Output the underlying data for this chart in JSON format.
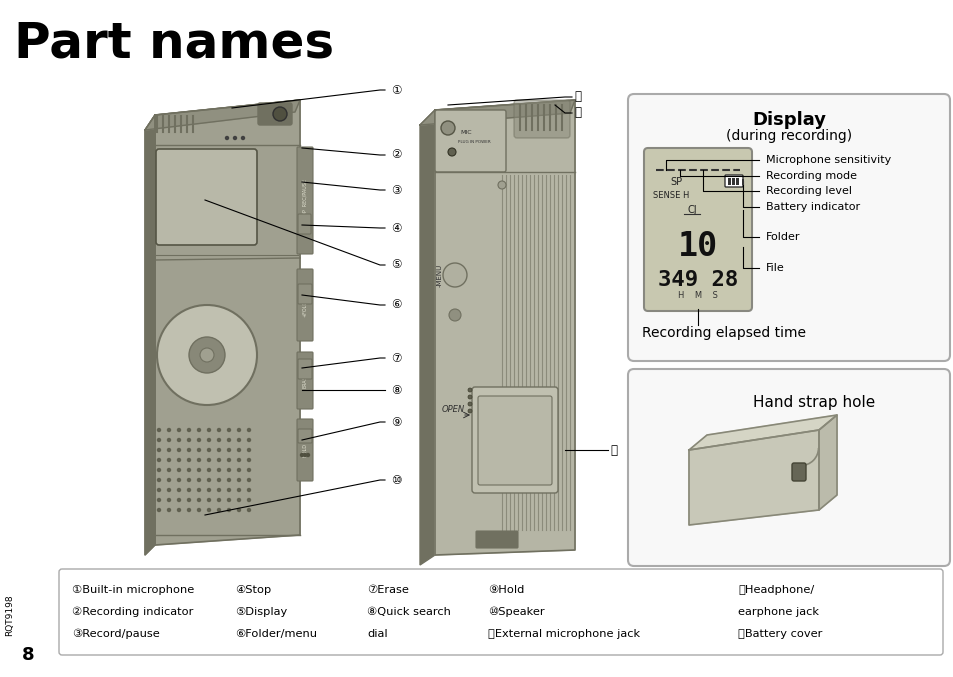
{
  "title": "Part names",
  "bg_color": "#ffffff",
  "title_fontsize": 36,
  "display_title": "Display",
  "display_subtitle": "(during recording)",
  "display_labels": [
    "Microphone sensitivity",
    "Recording mode",
    "Recording level",
    "Battery indicator",
    "Folder",
    "File"
  ],
  "display_bottom_label": "Recording elapsed time",
  "hand_strap_label": "Hand strap hole",
  "lcd_sp": "SP",
  "lcd_sense": "SENSE H",
  "lcd_cj": "CJ",
  "lcd_file_num": "10",
  "lcd_time": "349 28",
  "lcd_hms": "H    M    S",
  "bottom_legend": [
    [
      "①Built-in microphone",
      "④Stop",
      "⑦Erase",
      "⑨Hold",
      "⑫Headphone/"
    ],
    [
      "②Recording indicator",
      "⑤Display",
      "⑧Quick search",
      "⑩Speaker",
      "earphone jack"
    ],
    [
      "③Record/pause",
      "⑥Folder/menu",
      "dial",
      "⑪External microphone jack",
      "⑬Battery cover"
    ]
  ],
  "page_num": "8",
  "side_text": "RQT9198",
  "callout_numbers": [
    "①",
    "②",
    "③",
    "④",
    "⑤",
    "⑥",
    "⑦",
    "⑧",
    "⑨",
    "⑩",
    "⑪",
    "⑫",
    "⑬"
  ],
  "device_color": "#a0a090",
  "device_dark": "#707060",
  "device_mid": "#888878",
  "device_light": "#c0c0b0",
  "device_top_color": "#909080",
  "device_side_color": "#b0b0a0",
  "screen_color": "#b8b8a8",
  "lcd_bg": "#c8c8b0",
  "speaker_dot_color": "#606050"
}
